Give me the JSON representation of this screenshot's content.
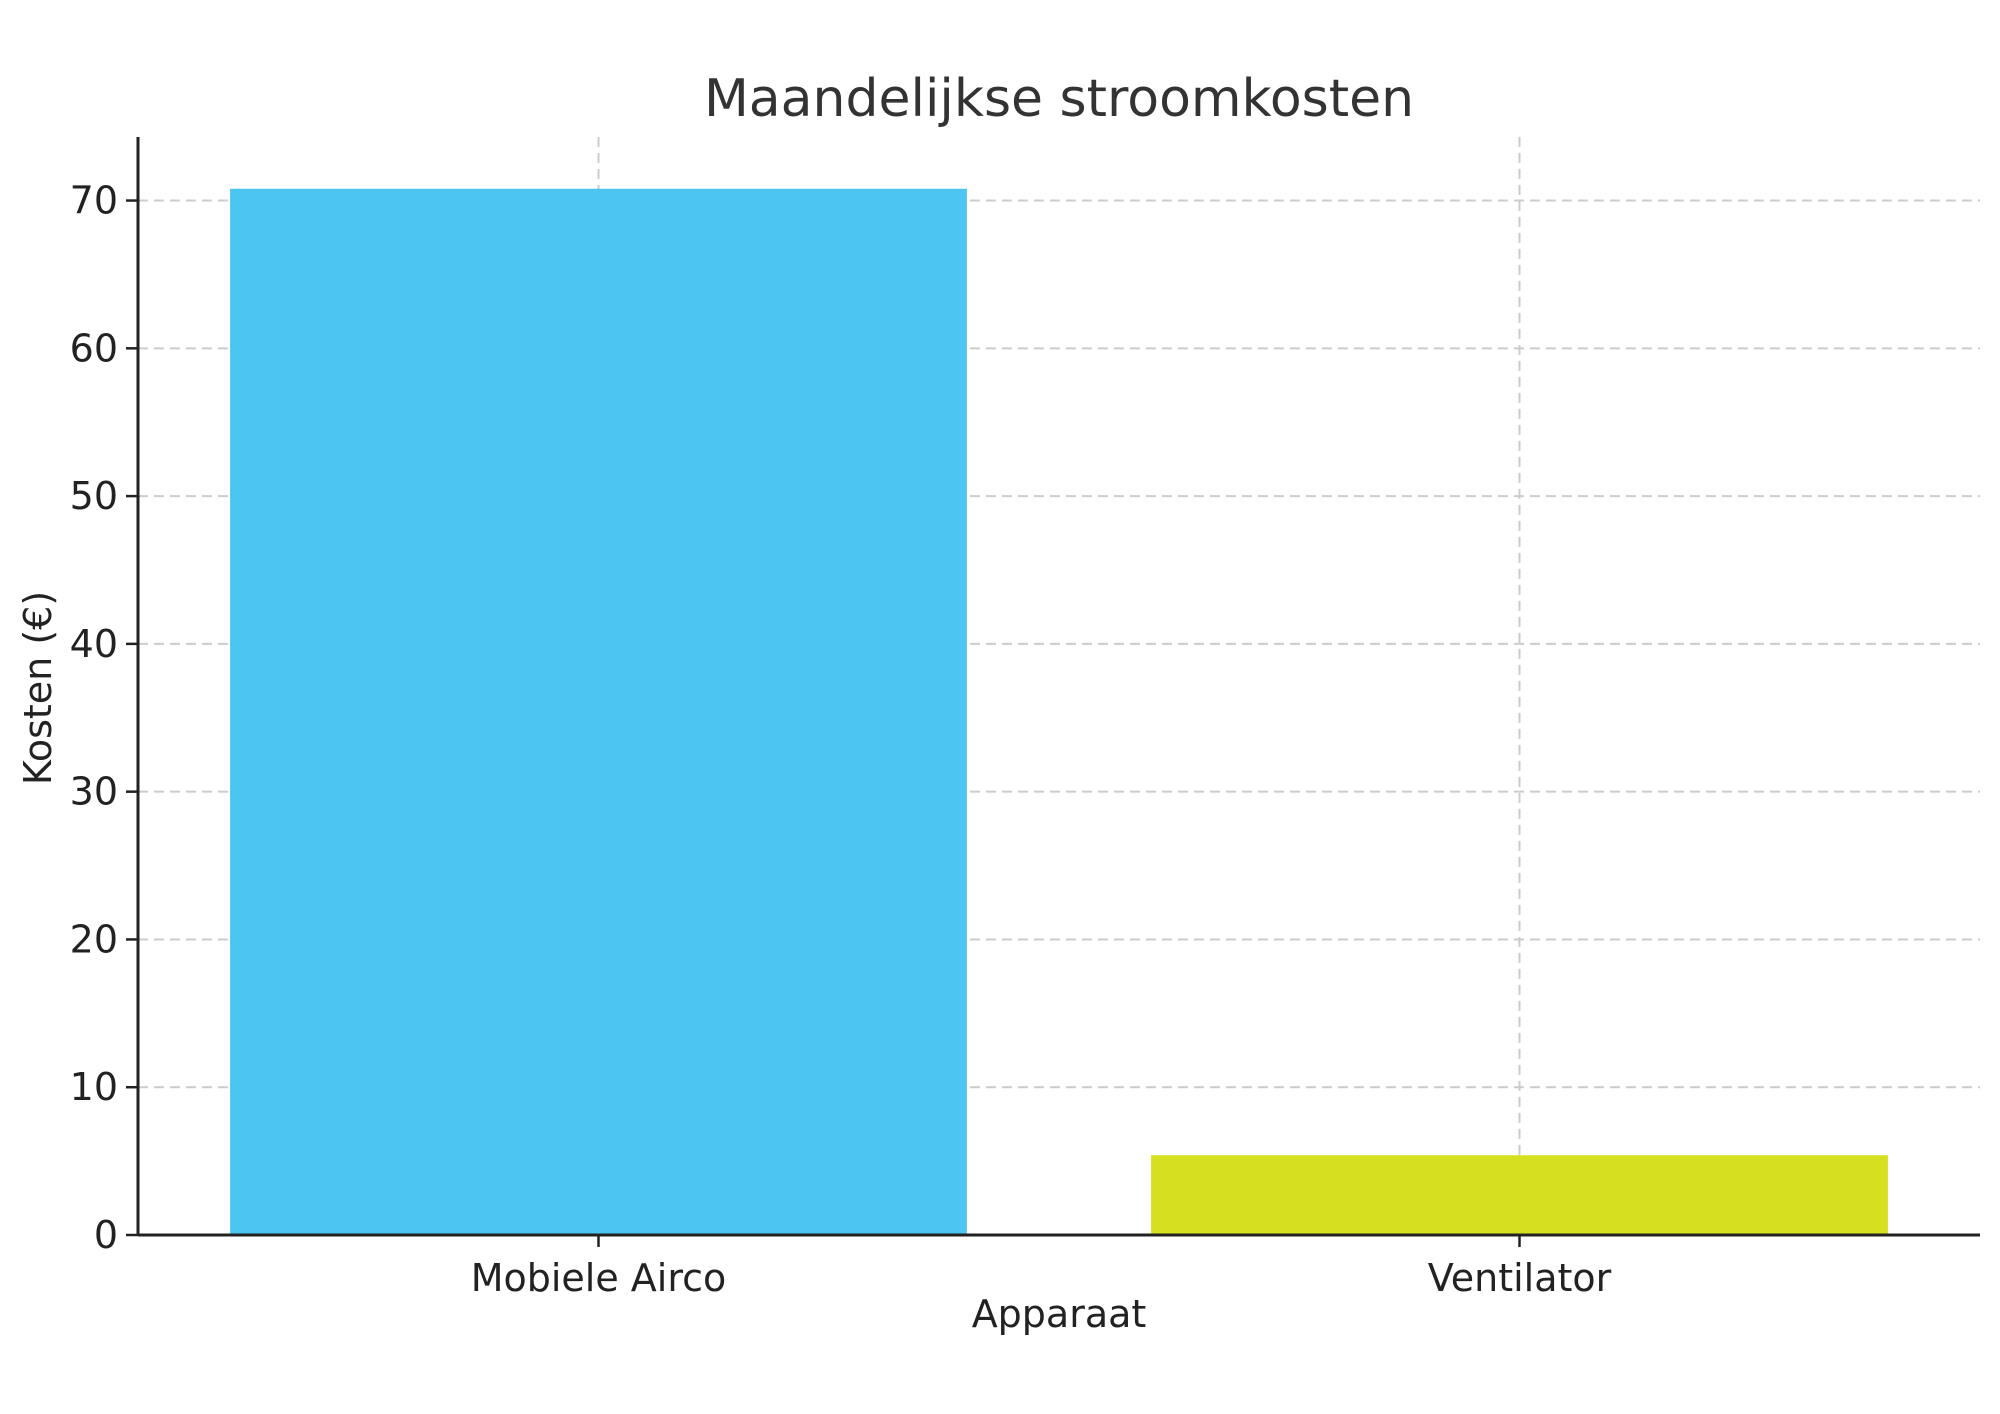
{
  "chart_data": {
    "type": "bar",
    "title": "Maandelijkse stroomkosten",
    "xlabel": "Apparaat",
    "ylabel": "Kosten (€)",
    "categories": [
      "Mobiele Airco",
      "Ventilator"
    ],
    "values": [
      70.8,
      5.4
    ],
    "colors": [
      "#4dc5f1",
      "#d6e021"
    ],
    "ylim": [
      0,
      74.3
    ],
    "yticks": [
      0,
      10,
      20,
      30,
      40,
      50,
      60,
      70
    ],
    "grid": true
  }
}
